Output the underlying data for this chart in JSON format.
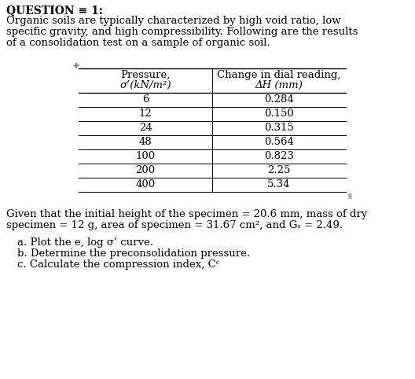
{
  "title": "QUESTION ≡ 1:",
  "para_lines": [
    "Organic soils are typically characterized by high void ratio, low",
    "specific gravity, and high compressibility. Following are the results",
    "of a consolidation test on a sample of organic soil."
  ],
  "col1_header1": "Pressure,",
  "col1_header2": "σ’(kN/m²)",
  "col2_header1": "Change in dial reading,",
  "col2_header2": "ΔH (mm)",
  "pressures": [
    "6",
    "12",
    "24",
    "48",
    "100",
    "200",
    "400"
  ],
  "dial_readings": [
    "0.284",
    "0.150",
    "0.315",
    "0.564",
    "0.823",
    "2.25",
    "5.34"
  ],
  "given_line1": "Given that the initial height of the specimen = 20.6 mm, mass of dry",
  "given_line2": "specimen = 12 g, area of specimen = 31.67 cm², and Gₛ = 2.49.",
  "part_a": "a. Plot the e, log σ’ curve.",
  "part_b": "b. Determine the preconsolidation pressure.",
  "part_c": "c. Calculate the compression index, Cᶜ",
  "bg_color": "#ffffff",
  "text_color": "#000000",
  "title_fs": 10,
  "body_fs": 9.5,
  "table_fs": 9.5
}
